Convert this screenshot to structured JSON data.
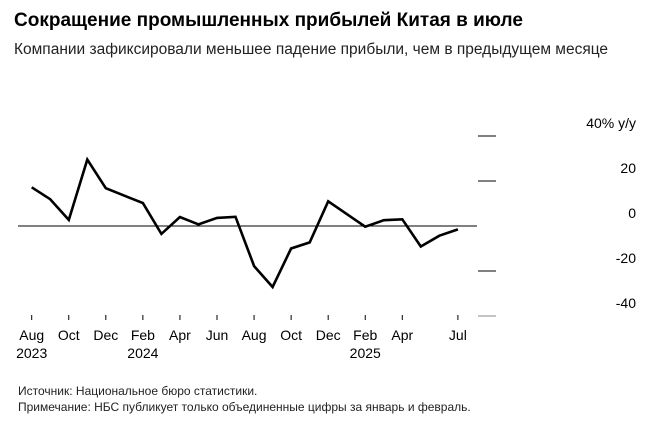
{
  "title": "Сокращение промышленных прибылей Китая в июле",
  "subtitle": "Компании зафиксировали меньшее падение прибыли, чем в предыдущем месяце",
  "source": "Источник: Национальное бюро статистики.",
  "note": "Примечание: НБС публикует только объединенные цифры за январь и февраль.",
  "chart_data": {
    "type": "line",
    "title": "Сокращение промышленных прибылей Китая в июле",
    "ylabel": "40% y/y",
    "ylim": [
      -40,
      40
    ],
    "yticks": [
      40,
      20,
      0,
      -20,
      -40
    ],
    "ytick_labels": [
      "40% y/y",
      "20",
      "0",
      "-20",
      "-40"
    ],
    "x": [
      "2023-08",
      "2023-09",
      "2023-10",
      "2023-11",
      "2023-12",
      "2024-01",
      "2024-02",
      "2024-03",
      "2024-04",
      "2024-05",
      "2024-06",
      "2024-07",
      "2024-08",
      "2024-09",
      "2024-10",
      "2024-11",
      "2024-12",
      "2025-01",
      "2025-02",
      "2025-03",
      "2025-04",
      "2025-05",
      "2025-06",
      "2025-07"
    ],
    "values": [
      17.2,
      11.9,
      2.7,
      29.5,
      16.8,
      null,
      10.2,
      -3.5,
      4.0,
      0.7,
      3.6,
      4.1,
      -17.8,
      -27.1,
      -10.0,
      -7.3,
      11.0,
      null,
      -0.3,
      2.6,
      3.0,
      -9.1,
      -4.3,
      -1.5
    ],
    "xtick_labels": [
      {
        "month": "Aug",
        "year": "2023",
        "index": 0
      },
      {
        "month": "Oct",
        "year": "",
        "index": 2
      },
      {
        "month": "Dec",
        "year": "",
        "index": 4
      },
      {
        "month": "Feb",
        "year": "2024",
        "index": 6
      },
      {
        "month": "Apr",
        "year": "",
        "index": 8
      },
      {
        "month": "Jun",
        "year": "",
        "index": 10
      },
      {
        "month": "Aug",
        "year": "",
        "index": 12
      },
      {
        "month": "Oct",
        "year": "",
        "index": 14
      },
      {
        "month": "Dec",
        "year": "",
        "index": 16
      },
      {
        "month": "Feb",
        "year": "2025",
        "index": 18
      },
      {
        "month": "Apr",
        "year": "",
        "index": 20
      },
      {
        "month": "Jul",
        "year": "",
        "index": 23
      }
    ],
    "grid": false,
    "line_color": "#000000"
  }
}
